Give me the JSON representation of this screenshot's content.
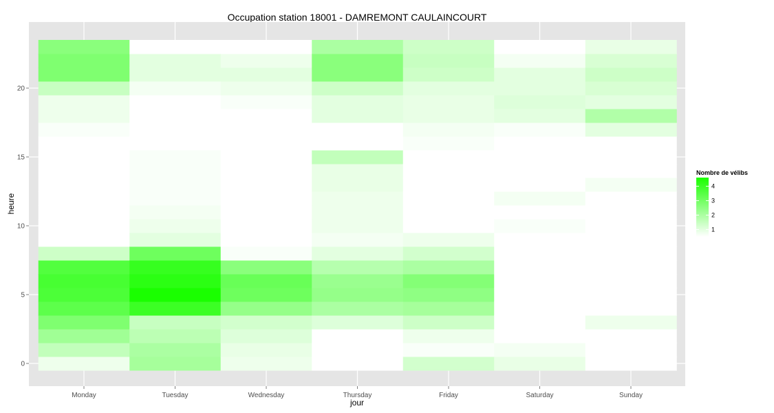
{
  "chart_data": {
    "type": "heatmap",
    "title": "Occupation station 18001 - DAMREMONT CAULAINCOURT",
    "xlabel": "jour",
    "ylabel": "heure",
    "x_categories": [
      "Monday",
      "Tuesday",
      "Wednesday",
      "Thursday",
      "Friday",
      "Saturday",
      "Sunday"
    ],
    "y_ticks": [
      0,
      5,
      10,
      15,
      20
    ],
    "ylim": [
      -0.5,
      23.5
    ],
    "grid": true,
    "legend": {
      "title": "Nombre de vélibs",
      "ticks": [
        1,
        2,
        3,
        4
      ],
      "range": [
        0.5,
        4.6
      ],
      "low_color": "#ffffff",
      "high_color": "#1aff00",
      "position": "right"
    },
    "values_by_day": {
      "Monday": [
        0.8,
        1.6,
        2.2,
        2.8,
        3.4,
        3.7,
        3.8,
        3.6,
        1.4,
        0.1,
        0.1,
        0.1,
        0.2,
        0.3,
        0.3,
        0.4,
        0.5,
        0.6,
        0.8,
        0.8,
        1.5,
        2.8,
        2.8,
        2.6
      ],
      "Tuesday": [
        2.1,
        2.0,
        1.7,
        1.5,
        4.0,
        4.6,
        4.3,
        4.1,
        3.1,
        1.0,
        0.8,
        0.7,
        0.6,
        0.6,
        0.6,
        0.6,
        0.5,
        0.5,
        0.4,
        0.4,
        0.7,
        1.0,
        1.0,
        0.4
      ],
      "Wednesday": [
        0.8,
        0.9,
        1.1,
        1.3,
        2.4,
        3.1,
        3.2,
        2.6,
        0.6,
        0.0,
        0.1,
        0.2,
        0.2,
        0.3,
        0.3,
        0.3,
        0.4,
        0.5,
        0.5,
        0.6,
        0.8,
        1.0,
        0.8,
        0.5
      ],
      "Thursday": [
        0.2,
        0.2,
        0.4,
        1.1,
        2.0,
        2.4,
        2.3,
        1.8,
        1.0,
        0.7,
        0.8,
        0.8,
        0.8,
        0.9,
        0.9,
        1.6,
        0.4,
        0.5,
        1.0,
        1.0,
        1.4,
        2.6,
        2.6,
        2.0
      ],
      "Friday": [
        1.3,
        0.6,
        0.8,
        1.4,
        2.1,
        2.5,
        2.7,
        2.0,
        1.3,
        0.8,
        0.5,
        0.5,
        0.3,
        0.3,
        0.3,
        0.5,
        0.6,
        0.7,
        0.9,
        0.9,
        1.0,
        1.4,
        1.5,
        1.4
      ],
      "Saturday": [
        0.9,
        0.7,
        0.5,
        0.4,
        0.4,
        0.4,
        0.3,
        0.3,
        0.3,
        0.2,
        0.6,
        0.1,
        0.7,
        0.5,
        0.2,
        0.3,
        0.4,
        0.6,
        1.0,
        1.1,
        1.0,
        1.0,
        0.7,
        0.5
      ],
      "Sunday": [
        0.2,
        0.2,
        0.3,
        0.8,
        0.4,
        0.3,
        0.2,
        0.2,
        0.3,
        0.3,
        0.2,
        0.3,
        0.5,
        0.7,
        0.4,
        0.4,
        0.3,
        1.0,
        1.9,
        1.0,
        1.2,
        1.4,
        1.2,
        0.9
      ]
    }
  }
}
